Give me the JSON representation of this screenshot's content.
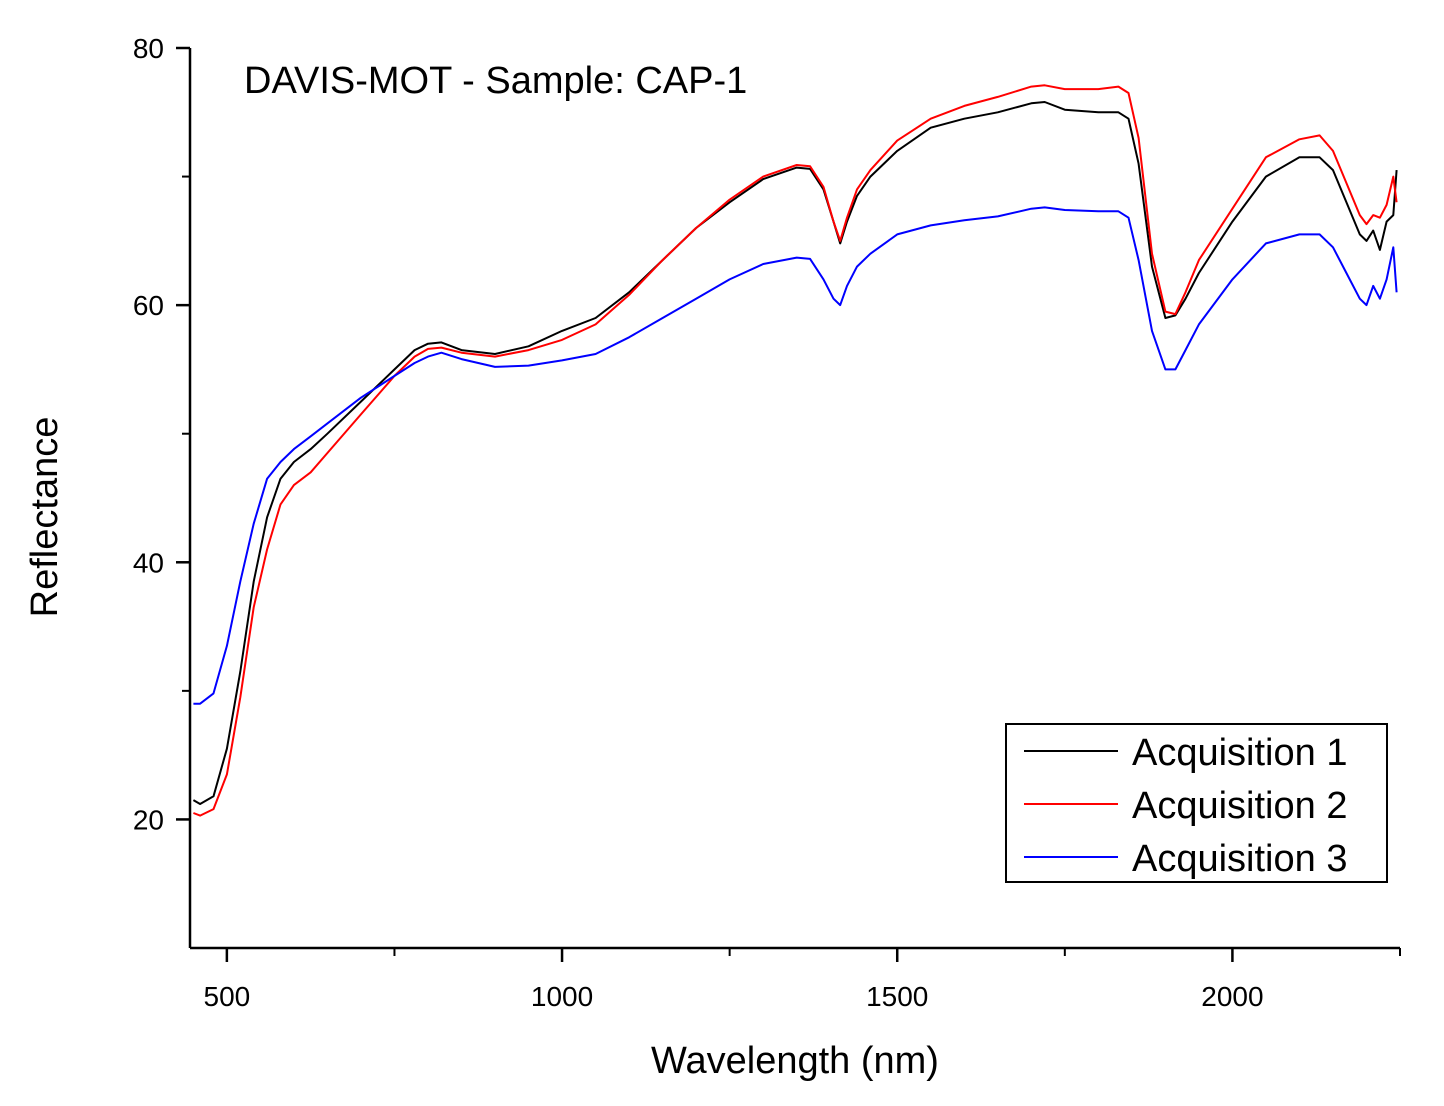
{
  "chart_data": {
    "type": "line",
    "title": "DAVIS-MOT - Sample: CAP-1",
    "xlabel": "Wavelength (nm)",
    "ylabel": "Reflectance",
    "xlim": [
      445,
      2250
    ],
    "ylim": [
      10,
      80
    ],
    "xticks": [
      500,
      1000,
      1500,
      2000
    ],
    "xticks_minor": [
      750,
      1250,
      1750,
      2250
    ],
    "yticks": [
      20,
      40,
      60,
      80
    ],
    "yticks_minor": [
      30,
      50,
      70
    ],
    "legend_position": "bottom-right",
    "series": [
      {
        "name": "Acquisition 1",
        "color": "#000000",
        "x": [
          450,
          460,
          480,
          500,
          520,
          540,
          560,
          580,
          600,
          625,
          650,
          700,
          750,
          780,
          800,
          820,
          850,
          900,
          950,
          1000,
          1050,
          1100,
          1150,
          1200,
          1250,
          1300,
          1350,
          1370,
          1390,
          1405,
          1415,
          1425,
          1440,
          1460,
          1500,
          1550,
          1600,
          1650,
          1700,
          1720,
          1750,
          1800,
          1830,
          1845,
          1860,
          1880,
          1900,
          1915,
          1930,
          1950,
          2000,
          2050,
          2100,
          2130,
          2150,
          2170,
          2190,
          2200,
          2210,
          2220,
          2230,
          2240,
          2245
        ],
        "y": [
          21.5,
          21.2,
          21.8,
          25.5,
          31.5,
          38.5,
          43.5,
          46.5,
          47.8,
          48.8,
          50.0,
          52.5,
          55.0,
          56.5,
          57.0,
          57.1,
          56.5,
          56.2,
          56.8,
          58.0,
          59.0,
          61.0,
          63.5,
          66.0,
          68.0,
          69.8,
          70.7,
          70.6,
          69.0,
          66.5,
          64.8,
          66.5,
          68.5,
          70.0,
          72.0,
          73.8,
          74.5,
          75.0,
          75.7,
          75.8,
          75.2,
          75.0,
          75.0,
          74.5,
          71.0,
          63.0,
          59.0,
          59.2,
          60.5,
          62.5,
          66.5,
          70.0,
          71.5,
          71.5,
          70.5,
          68.0,
          65.5,
          65.0,
          65.8,
          64.3,
          66.5,
          67.0,
          70.5
        ]
      },
      {
        "name": "Acquisition 2",
        "color": "#ff0000",
        "x": [
          450,
          460,
          480,
          500,
          520,
          540,
          560,
          580,
          600,
          625,
          650,
          700,
          750,
          780,
          800,
          820,
          850,
          900,
          950,
          1000,
          1050,
          1100,
          1150,
          1200,
          1250,
          1300,
          1350,
          1370,
          1390,
          1405,
          1415,
          1425,
          1440,
          1460,
          1500,
          1550,
          1600,
          1650,
          1700,
          1720,
          1750,
          1800,
          1830,
          1845,
          1860,
          1880,
          1900,
          1915,
          1930,
          1950,
          2000,
          2050,
          2100,
          2130,
          2150,
          2170,
          2190,
          2200,
          2210,
          2220,
          2230,
          2240,
          2245
        ],
        "y": [
          20.5,
          20.3,
          20.8,
          23.5,
          29.5,
          36.5,
          41.0,
          44.5,
          46.0,
          47.0,
          48.5,
          51.5,
          54.5,
          56.0,
          56.6,
          56.7,
          56.3,
          56.0,
          56.5,
          57.3,
          58.5,
          60.8,
          63.5,
          66.0,
          68.2,
          70.0,
          70.9,
          70.8,
          69.2,
          66.5,
          65.0,
          66.8,
          69.0,
          70.5,
          72.8,
          74.5,
          75.5,
          76.2,
          77.0,
          77.1,
          76.8,
          76.8,
          77.0,
          76.5,
          73.0,
          64.0,
          59.5,
          59.3,
          61.0,
          63.5,
          67.5,
          71.5,
          72.9,
          73.2,
          72.0,
          69.5,
          67.0,
          66.3,
          67.0,
          66.8,
          67.8,
          70.0,
          68.0
        ]
      },
      {
        "name": "Acquisition 3",
        "color": "#0000ff",
        "x": [
          450,
          460,
          480,
          500,
          520,
          540,
          560,
          580,
          600,
          625,
          650,
          700,
          750,
          780,
          800,
          820,
          850,
          900,
          950,
          1000,
          1050,
          1100,
          1150,
          1200,
          1250,
          1300,
          1350,
          1370,
          1390,
          1405,
          1415,
          1425,
          1440,
          1460,
          1500,
          1550,
          1600,
          1650,
          1700,
          1720,
          1750,
          1800,
          1830,
          1845,
          1860,
          1880,
          1900,
          1915,
          1930,
          1950,
          2000,
          2050,
          2100,
          2130,
          2150,
          2170,
          2190,
          2200,
          2210,
          2220,
          2230,
          2240,
          2245
        ],
        "y": [
          29.0,
          29.0,
          29.8,
          33.5,
          38.5,
          43.0,
          46.5,
          47.8,
          48.8,
          49.8,
          50.8,
          52.8,
          54.5,
          55.5,
          56.0,
          56.3,
          55.8,
          55.2,
          55.3,
          55.7,
          56.2,
          57.5,
          59.0,
          60.5,
          62.0,
          63.2,
          63.7,
          63.6,
          62.0,
          60.5,
          60.0,
          61.5,
          63.0,
          64.0,
          65.5,
          66.2,
          66.6,
          66.9,
          67.5,
          67.6,
          67.4,
          67.3,
          67.3,
          66.8,
          63.5,
          58.0,
          55.0,
          55.0,
          56.5,
          58.5,
          62.0,
          64.8,
          65.5,
          65.5,
          64.5,
          62.5,
          60.5,
          60.0,
          61.5,
          60.5,
          62.0,
          64.5,
          61.0
        ]
      }
    ]
  }
}
